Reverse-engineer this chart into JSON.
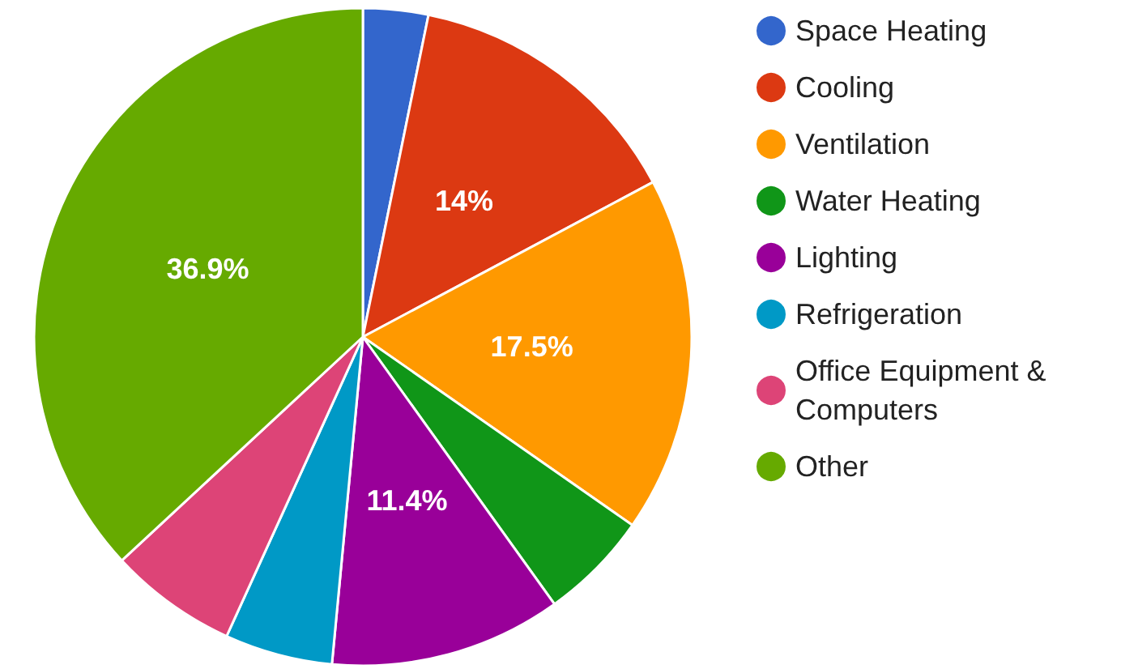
{
  "chart_data": {
    "type": "pie",
    "categories": [
      "Space Heating",
      "Cooling",
      "Ventilation",
      "Water Heating",
      "Lighting",
      "Refrigeration",
      "Office Equipment & Computers",
      "Other"
    ],
    "values": [
      3.2,
      14,
      17.5,
      5.4,
      11.4,
      5.3,
      6.3,
      36.9
    ],
    "colors": [
      "#3366cc",
      "#dc3912",
      "#ff9900",
      "#109618",
      "#990099",
      "#0099c6",
      "#dd4477",
      "#66aa00"
    ],
    "value_labels": [
      null,
      "14%",
      "17.5%",
      null,
      "11.4%",
      null,
      null,
      "36.9%"
    ],
    "legend": "right"
  }
}
